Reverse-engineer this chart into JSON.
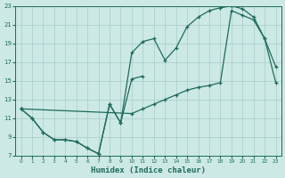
{
  "xlabel": "Humidex (Indice chaleur)",
  "background_color": "#cce9e6",
  "grid_color": "#aed0cc",
  "line_color": "#1e6b5a",
  "xlim": [
    -0.5,
    23.5
  ],
  "ylim": [
    7,
    23
  ],
  "xticks": [
    0,
    1,
    2,
    3,
    4,
    5,
    6,
    7,
    8,
    9,
    10,
    11,
    12,
    13,
    14,
    15,
    16,
    17,
    18,
    19,
    20,
    21,
    22,
    23
  ],
  "yticks": [
    7,
    9,
    11,
    13,
    15,
    17,
    19,
    21,
    23
  ],
  "line1_x": [
    0,
    1,
    2,
    3,
    4,
    5,
    6,
    7,
    8,
    9,
    10,
    11
  ],
  "line1_y": [
    12.0,
    11.0,
    9.5,
    8.7,
    8.7,
    8.5,
    7.8,
    7.2,
    12.5,
    10.5,
    15.2,
    15.5
  ],
  "line2_x": [
    0,
    1,
    2,
    3,
    4,
    5,
    6,
    7,
    8,
    9,
    10,
    11,
    12,
    13,
    14,
    15,
    16,
    17,
    18,
    19,
    20,
    21,
    22,
    23
  ],
  "line2_y": [
    12.0,
    11.0,
    9.5,
    8.7,
    8.7,
    8.5,
    7.8,
    7.2,
    12.5,
    10.5,
    18.0,
    19.2,
    19.5,
    17.2,
    18.5,
    20.8,
    21.8,
    22.5,
    22.8,
    23.0,
    22.7,
    21.8,
    19.5,
    16.5
  ],
  "line3_x": [
    0,
    10,
    11,
    12,
    13,
    14,
    15,
    16,
    17,
    18,
    19,
    20,
    21,
    22,
    23
  ],
  "line3_y": [
    12.0,
    11.5,
    12.0,
    12.5,
    13.0,
    13.5,
    14.0,
    14.3,
    14.5,
    14.8,
    22.5,
    22.0,
    21.5,
    19.5,
    14.8
  ]
}
